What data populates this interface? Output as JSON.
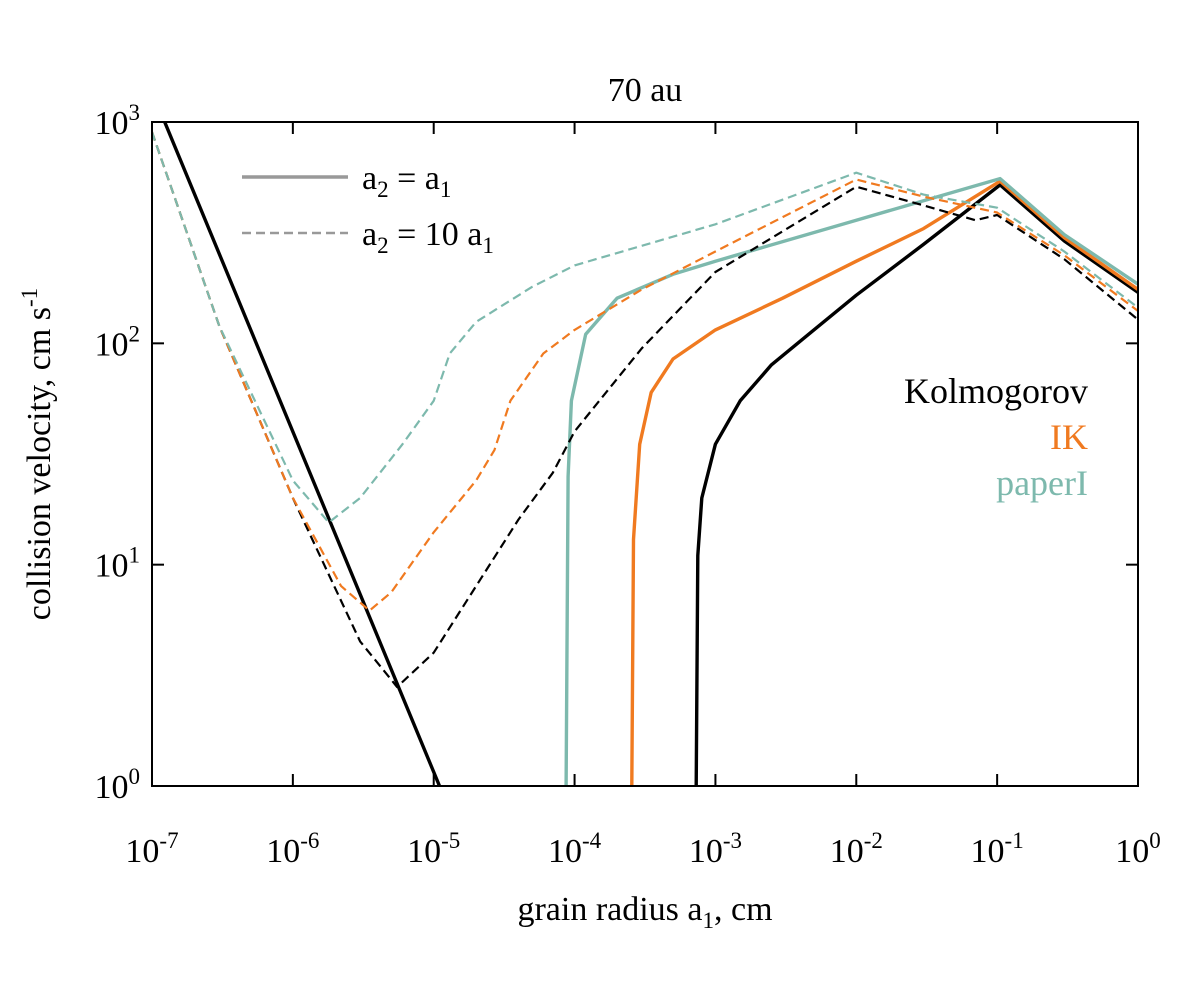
{
  "chart_data": {
    "type": "line",
    "title": "70 au",
    "xlabel": "grain radius a₁, cm",
    "xlabel_parts": {
      "pre": "grain radius a",
      "sub": "1",
      "post": ", cm"
    },
    "ylabel_parts": {
      "pre": "collision velocity, cm s",
      "sup": "-1"
    },
    "xscale": "log",
    "yscale": "log",
    "xlim": [
      1e-07,
      1
    ],
    "ylim": [
      1,
      1000
    ],
    "x_ticks": [
      {
        "base": "10",
        "exp": "-7"
      },
      {
        "base": "10",
        "exp": "-6"
      },
      {
        "base": "10",
        "exp": "-5"
      },
      {
        "base": "10",
        "exp": "-4"
      },
      {
        "base": "10",
        "exp": "-3"
      },
      {
        "base": "10",
        "exp": "-2"
      },
      {
        "base": "10",
        "exp": "-1"
      },
      {
        "base": "10",
        "exp": "0"
      }
    ],
    "y_ticks": [
      {
        "base": "10",
        "exp": "0"
      },
      {
        "base": "10",
        "exp": "1"
      },
      {
        "base": "10",
        "exp": "2"
      },
      {
        "base": "10",
        "exp": "3"
      }
    ],
    "style_legend": [
      {
        "dash": "solid",
        "pre": "a",
        "sub1": "2",
        "mid": " = a",
        "sub2": "1"
      },
      {
        "dash": "dashed",
        "pre": "a",
        "sub1": "2",
        "mid": " = 10 a",
        "sub2": "1"
      }
    ],
    "color_legend_position": "right",
    "series": [
      {
        "name": "Kolmogorov",
        "color": "#000000",
        "dash": "solid",
        "points": [
          [
            1.23e-07,
            1000
          ],
          [
            1.1e-05,
            1
          ]
        ]
      },
      {
        "name": "Kolmogorov",
        "color": "#000000",
        "dash": "solid",
        "points": [
          [
            0.00073,
            1
          ],
          [
            0.00075,
            11
          ],
          [
            0.0008,
            20
          ],
          [
            0.001,
            35
          ],
          [
            0.0015,
            55
          ],
          [
            0.0025,
            80
          ],
          [
            0.005,
            115
          ],
          [
            0.01,
            165
          ],
          [
            0.03,
            280
          ],
          [
            0.105,
            520
          ],
          [
            0.3,
            290
          ],
          [
            1,
            170
          ]
        ]
      },
      {
        "name": "IK",
        "color": "#f07a20",
        "dash": "solid",
        "points": [
          [
            0.000255,
            1
          ],
          [
            0.000262,
            13
          ],
          [
            0.00029,
            35
          ],
          [
            0.00035,
            60
          ],
          [
            0.0005,
            85
          ],
          [
            0.001,
            115
          ],
          [
            0.003,
            160
          ],
          [
            0.01,
            235
          ],
          [
            0.03,
            330
          ],
          [
            0.105,
            540
          ],
          [
            0.3,
            300
          ],
          [
            1,
            175
          ]
        ]
      },
      {
        "name": "paperI",
        "color": "#7db9ad",
        "dash": "solid",
        "points": [
          [
            8.7e-05,
            1
          ],
          [
            9e-05,
            25
          ],
          [
            9.5e-05,
            55
          ],
          [
            0.00012,
            110
          ],
          [
            0.0002,
            160
          ],
          [
            0.0005,
            205
          ],
          [
            0.001,
            235
          ],
          [
            0.01,
            360
          ],
          [
            0.105,
            555
          ],
          [
            0.3,
            310
          ],
          [
            1,
            185
          ]
        ]
      },
      {
        "name": "Kolmogorov",
        "color": "#000000",
        "dash": "dashed",
        "points": [
          [
            1e-07,
            900
          ],
          [
            3e-07,
            120
          ],
          [
            1e-06,
            20
          ],
          [
            3e-06,
            4.5
          ],
          [
            5.5e-06,
            2.8
          ],
          [
            1e-05,
            4
          ],
          [
            2e-05,
            8
          ],
          [
            4e-05,
            16
          ],
          [
            7e-05,
            26
          ],
          [
            0.0001,
            40
          ],
          [
            0.0003,
            95
          ],
          [
            0.001,
            210
          ],
          [
            0.01,
            510
          ],
          [
            0.03,
            420
          ],
          [
            0.07,
            360
          ],
          [
            0.1,
            380
          ],
          [
            0.3,
            240
          ],
          [
            1,
            128
          ]
        ]
      },
      {
        "name": "IK",
        "color": "#f07a20",
        "dash": "dashed",
        "points": [
          [
            1e-07,
            900
          ],
          [
            3e-07,
            120
          ],
          [
            1e-06,
            20
          ],
          [
            2.2e-06,
            8
          ],
          [
            3.5e-06,
            6.2
          ],
          [
            5e-06,
            7.5
          ],
          [
            1e-05,
            14
          ],
          [
            2e-05,
            24
          ],
          [
            2.7e-05,
            33
          ],
          [
            3.5e-05,
            55
          ],
          [
            6e-05,
            90
          ],
          [
            0.0001,
            115
          ],
          [
            0.0003,
            175
          ],
          [
            0.001,
            260
          ],
          [
            0.01,
            550
          ],
          [
            0.03,
            460
          ],
          [
            0.1,
            390
          ],
          [
            0.3,
            250
          ],
          [
            1,
            140
          ]
        ]
      },
      {
        "name": "paperI",
        "color": "#7db9ad",
        "dash": "dashed",
        "points": [
          [
            1e-07,
            900
          ],
          [
            3e-07,
            120
          ],
          [
            1e-06,
            24
          ],
          [
            1.8e-06,
            15.5
          ],
          [
            3e-06,
            20
          ],
          [
            6e-06,
            35
          ],
          [
            1e-05,
            55
          ],
          [
            1.3e-05,
            90
          ],
          [
            2e-05,
            125
          ],
          [
            5e-05,
            180
          ],
          [
            0.0001,
            225
          ],
          [
            0.001,
            345
          ],
          [
            0.01,
            590
          ],
          [
            0.03,
            470
          ],
          [
            0.1,
            410
          ],
          [
            0.3,
            260
          ],
          [
            1,
            145
          ]
        ]
      }
    ],
    "color_legend": [
      {
        "label": "Kolmogorov",
        "color": "#000000"
      },
      {
        "label": "IK",
        "color": "#f07a20"
      },
      {
        "label": "paperI",
        "color": "#7db9ad"
      }
    ],
    "style_legend_color": "#999999"
  }
}
